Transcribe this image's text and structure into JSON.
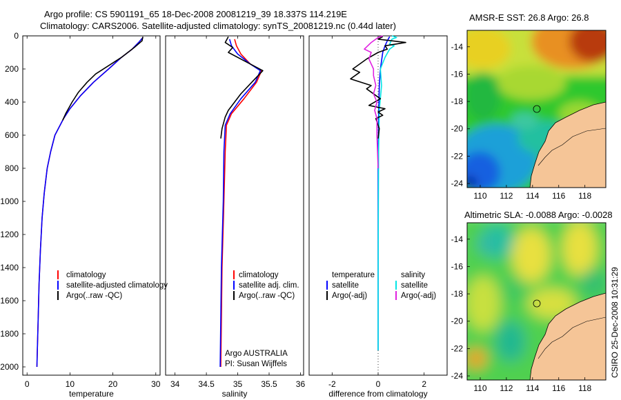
{
  "titles": {
    "line1": "Argo profile: CS 5901191_65 18-Dec-2008 20081219_39 18.337S 114.219E",
    "line2": "Climatology: CARS2006. Satellite-adjusted climatology: synTS_20081219.nc (0.44d later)"
  },
  "stamp": "CSIRO 25-Dec-2008 10:31:29",
  "credit": {
    "line1": "Argo AUSTRALIA",
    "line2": "PI: Susan Wijffels"
  },
  "colors": {
    "climatology": "#ff0000",
    "satellite": "#0000ff",
    "argo": "#000000",
    "sal_satellite": "#00e5e5",
    "sal_argo": "#e020e0",
    "land": "#f5c597"
  },
  "chart_data": [
    {
      "type": "line",
      "name": "temperature-panel",
      "xlabel": "temperature",
      "ylabel": "",
      "xlim": [
        -1,
        31
      ],
      "ylim": [
        2050,
        0
      ],
      "y_reversed": true,
      "xticks": [
        0,
        10,
        20,
        30
      ],
      "yticks": [
        0,
        200,
        400,
        600,
        800,
        1000,
        1200,
        1400,
        1600,
        1800,
        2000
      ],
      "legend": [
        "climatology",
        "satellite-adjusted climatology",
        "Argo(..raw -QC)"
      ],
      "series": [
        {
          "name": "climatology",
          "color": "#ff0000",
          "points": [
            [
              27,
              10
            ],
            [
              26,
              40
            ],
            [
              24.5,
              80
            ],
            [
              22,
              130
            ],
            [
              19,
              200
            ],
            [
              15.5,
              280
            ],
            [
              12.5,
              360
            ],
            [
              10,
              440
            ],
            [
              8.5,
              500
            ],
            [
              6.5,
              600
            ],
            [
              5.5,
              700
            ],
            [
              4.7,
              800
            ],
            [
              4,
              950
            ],
            [
              3.5,
              1100
            ],
            [
              3.1,
              1300
            ],
            [
              2.8,
              1500
            ],
            [
              2.6,
              1700
            ],
            [
              2.4,
              1900
            ],
            [
              2.3,
              2000
            ]
          ]
        },
        {
          "name": "satellite-adjusted climatology",
          "color": "#0000ff",
          "points": [
            [
              27,
              10
            ],
            [
              26,
              40
            ],
            [
              24.5,
              80
            ],
            [
              22,
              130
            ],
            [
              19,
              200
            ],
            [
              15.5,
              280
            ],
            [
              12.5,
              360
            ],
            [
              10,
              440
            ],
            [
              8.5,
              500
            ],
            [
              6.5,
              600
            ],
            [
              5.5,
              700
            ],
            [
              4.7,
              800
            ],
            [
              4,
              950
            ],
            [
              3.5,
              1100
            ],
            [
              3.1,
              1300
            ],
            [
              2.8,
              1500
            ],
            [
              2.6,
              1700
            ],
            [
              2.4,
              1900
            ],
            [
              2.3,
              2000
            ]
          ]
        },
        {
          "name": "Argo(..raw -QC)",
          "color": "#000000",
          "points": [
            [
              27,
              5
            ],
            [
              26.8,
              30
            ],
            [
              25,
              70
            ],
            [
              22,
              130
            ],
            [
              19,
              180
            ],
            [
              16,
              230
            ],
            [
              14,
              280
            ],
            [
              12,
              340
            ],
            [
              10.5,
              400
            ],
            [
              9,
              470
            ],
            [
              8.3,
              510
            ]
          ]
        }
      ]
    },
    {
      "type": "line",
      "name": "salinity-panel",
      "xlabel": "salinity",
      "ylabel": "",
      "xlim": [
        33.85,
        36.05
      ],
      "ylim": [
        2050,
        0
      ],
      "y_reversed": true,
      "xticks": [
        34,
        34.5,
        35,
        35.5,
        36
      ],
      "yticks": [],
      "legend": [
        "climatology",
        "satellite adj. clim.",
        "Argo(..raw -QC)"
      ],
      "series": [
        {
          "name": "climatology",
          "color": "#ff0000",
          "points": [
            [
              34.95,
              20
            ],
            [
              34.98,
              60
            ],
            [
              35.05,
              110
            ],
            [
              35.2,
              170
            ],
            [
              35.38,
              210
            ],
            [
              35.3,
              280
            ],
            [
              35.1,
              380
            ],
            [
              34.9,
              470
            ],
            [
              34.82,
              540
            ],
            [
              34.8,
              700
            ],
            [
              34.78,
              1000
            ],
            [
              34.75,
              1400
            ],
            [
              34.73,
              2000
            ]
          ]
        },
        {
          "name": "satellite adj. clim.",
          "color": "#0000ff",
          "points": [
            [
              34.87,
              20
            ],
            [
              34.9,
              60
            ],
            [
              35.0,
              110
            ],
            [
              35.2,
              170
            ],
            [
              35.36,
              210
            ],
            [
              35.28,
              280
            ],
            [
              35.05,
              380
            ],
            [
              34.88,
              470
            ],
            [
              34.8,
              540
            ],
            [
              34.78,
              700
            ],
            [
              34.77,
              1000
            ],
            [
              34.74,
              1400
            ],
            [
              34.72,
              2000
            ]
          ]
        },
        {
          "name": "Argo(..raw -QC)",
          "color": "#000000",
          "points": [
            [
              34.85,
              5
            ],
            [
              34.8,
              40
            ],
            [
              34.92,
              70
            ],
            [
              34.85,
              100
            ],
            [
              35.2,
              170
            ],
            [
              35.4,
              210
            ],
            [
              35.2,
              290
            ],
            [
              35.05,
              350
            ],
            [
              34.95,
              400
            ],
            [
              34.85,
              450
            ],
            [
              34.8,
              490
            ],
            [
              34.75,
              560
            ],
            [
              34.73,
              620
            ]
          ]
        }
      ]
    },
    {
      "type": "line",
      "name": "difference-panel",
      "xlabel": "difference from climatology",
      "ylabel": "",
      "xlim": [
        -3,
        3
      ],
      "ylim": [
        2050,
        0
      ],
      "y_reversed": true,
      "xticks": [
        -2,
        0,
        2
      ],
      "yticks": [],
      "legend": [
        "temperature",
        "satellite",
        "Argo(-adj)",
        "salinity",
        "satellite",
        "Argo(-adj)"
      ],
      "series": [
        {
          "name": "temperature satellite",
          "color": "#0000ff",
          "points": [
            [
              0.5,
              5
            ],
            [
              0.4,
              30
            ],
            [
              0.3,
              60
            ],
            [
              0.2,
              100
            ],
            [
              0.1,
              200
            ],
            [
              0.05,
              300
            ],
            [
              0.02,
              500
            ],
            [
              0,
              800
            ],
            [
              0,
              1200
            ],
            [
              0,
              1500
            ],
            [
              0,
              1900
            ]
          ]
        },
        {
          "name": "salinity satellite",
          "color": "#00e5e5",
          "points": [
            [
              0.6,
              0
            ],
            [
              0.8,
              10
            ],
            [
              0.6,
              20
            ],
            [
              0.5,
              50
            ],
            [
              0.7,
              60
            ],
            [
              0.5,
              80
            ],
            [
              0.3,
              130
            ],
            [
              0.1,
              200
            ],
            [
              0.15,
              300
            ],
            [
              0.05,
              450
            ],
            [
              0.02,
              700
            ],
            [
              0.01,
              1100
            ],
            [
              0,
              1500
            ],
            [
              0,
              1900
            ]
          ]
        },
        {
          "name": "temperature Argo(-adj)",
          "color": "#000000",
          "points": [
            [
              0.2,
              5
            ],
            [
              0,
              20
            ],
            [
              1.2,
              40
            ],
            [
              0.3,
              60
            ],
            [
              0.4,
              80
            ],
            [
              0,
              100
            ],
            [
              -0.5,
              140
            ],
            [
              -1.1,
              200
            ],
            [
              -0.8,
              220
            ],
            [
              -1.2,
              260
            ],
            [
              -0.3,
              300
            ],
            [
              -0.5,
              320
            ],
            [
              0.1,
              380
            ],
            [
              -0.4,
              420
            ],
            [
              0.3,
              440
            ],
            [
              0,
              460
            ],
            [
              0.2,
              480
            ],
            [
              -0.1,
              500
            ],
            [
              0.05,
              560
            ],
            [
              0,
              620
            ]
          ]
        },
        {
          "name": "salinity Argo(-adj)",
          "color": "#e020e0",
          "points": [
            [
              0.2,
              0
            ],
            [
              0,
              10
            ],
            [
              -0.3,
              40
            ],
            [
              -0.6,
              80
            ],
            [
              -0.3,
              100
            ],
            [
              -0.4,
              140
            ],
            [
              -0.2,
              200
            ],
            [
              -0.2,
              240
            ],
            [
              -0.1,
              300
            ],
            [
              -0.2,
              350
            ],
            [
              -0.05,
              400
            ],
            [
              -0.15,
              450
            ],
            [
              -0.05,
              500
            ],
            [
              -0.05,
              600
            ],
            [
              0,
              800
            ]
          ]
        }
      ]
    },
    {
      "type": "heatmap",
      "name": "sst-map",
      "title": "AMSR-E SST: 26.8 Argo: 26.8",
      "xlim": [
        109,
        119.6
      ],
      "ylim": [
        -24.3,
        -12.8
      ],
      "xticks": [
        110,
        112,
        114,
        116,
        118
      ],
      "yticks": [
        -14,
        -16,
        -18,
        -20,
        -22,
        -24
      ],
      "float_position": {
        "lon": 114.219,
        "lat": -18.337
      }
    },
    {
      "type": "heatmap",
      "name": "sla-map",
      "title": "Altimetric SLA: -0.0088 Argo: -0.0028",
      "xlim": [
        109,
        119.6
      ],
      "ylim": [
        -24.3,
        -12.8
      ],
      "xticks": [
        110,
        112,
        114,
        116,
        118
      ],
      "yticks": [
        -14,
        -16,
        -18,
        -20,
        -22,
        -24
      ],
      "float_position": {
        "lon": 114.219,
        "lat": -18.337
      }
    }
  ]
}
